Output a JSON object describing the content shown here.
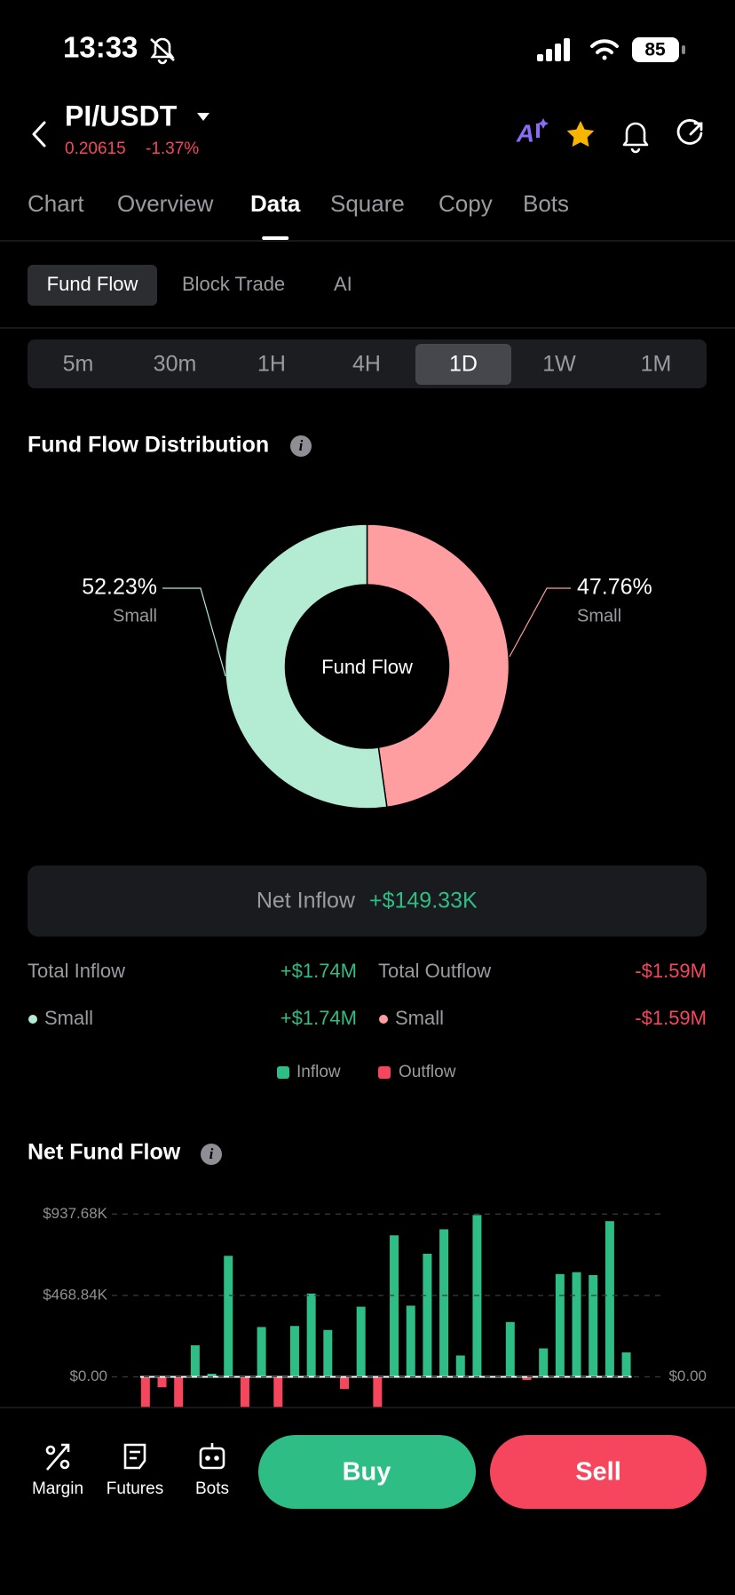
{
  "status_bar": {
    "time": "13:33",
    "battery": "85"
  },
  "header": {
    "pair": "PI/USDT",
    "price": "0.20615",
    "change": "-1.37%"
  },
  "tabs": {
    "items": [
      "Chart",
      "Overview",
      "Data",
      "Square",
      "Copy",
      "Bots"
    ],
    "selected": 2
  },
  "sub_tabs": {
    "items": [
      "Fund Flow",
      "Block Trade",
      "AI"
    ],
    "selected": 0
  },
  "timeframes": {
    "items": [
      "5m",
      "30m",
      "1H",
      "4H",
      "1D",
      "1W",
      "1M"
    ],
    "selected": 4
  },
  "summary": {
    "net_inflow_label": "Net Inflow",
    "net_inflow_value": "+$149.33K",
    "total_inflow_label": "Total Inflow",
    "total_inflow_value": "+$1.74M",
    "total_outflow_label": "Total Outflow",
    "total_outflow_value": "-$1.59M",
    "inflow_rows": [
      {
        "label": "Small",
        "value": "+$1.74M"
      }
    ],
    "outflow_rows": [
      {
        "label": "Small",
        "value": "-$1.59M"
      }
    ],
    "legend": [
      "Inflow",
      "Outflow"
    ]
  },
  "chart_data": [
    {
      "type": "pie",
      "title": "Fund Flow Distribution",
      "center_label": "Fund Flow",
      "categories": [
        "Small",
        "Small"
      ],
      "values": [
        52.23,
        47.76
      ],
      "value_labels": [
        "52.23%",
        "47.76%"
      ],
      "colors": [
        "#b3ecd3",
        "#ff9ea1"
      ]
    },
    {
      "type": "bar",
      "title": "Net Fund Flow",
      "categories": [
        null,
        null,
        null,
        null,
        null,
        null,
        null,
        null,
        null,
        null,
        null,
        null,
        null,
        null,
        null,
        null,
        null,
        null,
        null,
        null,
        null,
        null,
        null,
        null,
        null,
        null,
        null,
        null,
        null,
        null
      ],
      "values": [
        -200000,
        -60000,
        -200000,
        182000,
        18000,
        697000,
        -200000,
        287000,
        -200000,
        293000,
        480000,
        270000,
        -70000,
        404000,
        -200000,
        815000,
        410000,
        709000,
        850000,
        123000,
        932000,
        0,
        316000,
        -18000,
        164000,
        592000,
        603000,
        586000,
        897000,
        141000
      ],
      "colors": {
        "positive": "#2ebd85",
        "negative": "#f6465d"
      },
      "ylim": [
        -200000,
        1000000
      ],
      "yticks": [
        {
          "value": 0,
          "label": "$0.00"
        },
        {
          "value": 468840,
          "label": "$468.84K"
        },
        {
          "value": 937680,
          "label": "$937.68K"
        }
      ],
      "grid": true
    }
  ],
  "bottom_bar": {
    "nav": [
      "Margin",
      "Futures",
      "Bots"
    ],
    "buy": "Buy",
    "sell": "Sell"
  }
}
